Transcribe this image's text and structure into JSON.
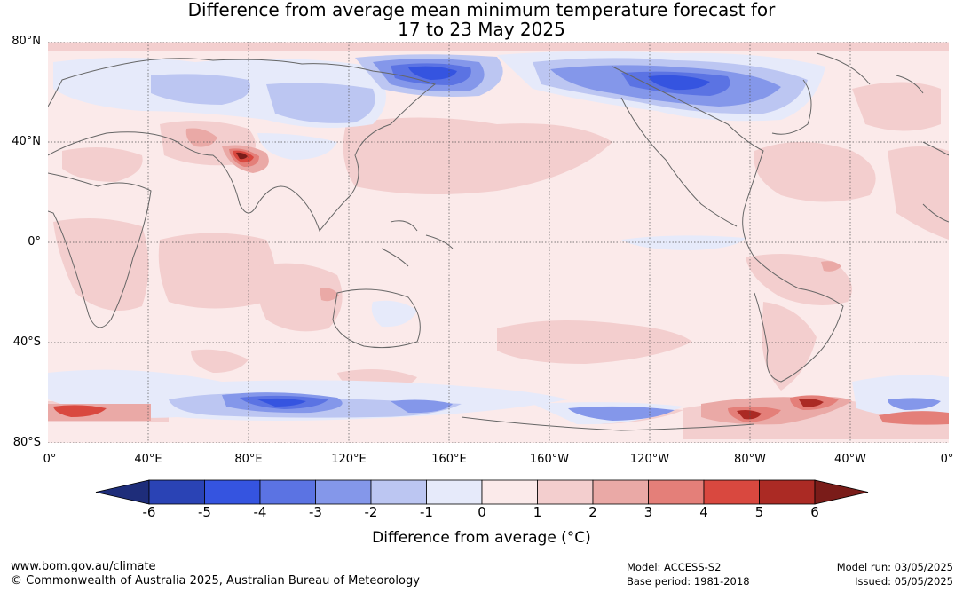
{
  "title": {
    "line1": "Difference from average mean minimum temperature forecast for",
    "line2": "17 to 23 May 2025"
  },
  "map": {
    "lat_labels": [
      "80°N",
      "40°N",
      "0°",
      "40°S",
      "80°S"
    ],
    "lon_labels": [
      "0°",
      "40°E",
      "80°E",
      "120°E",
      "160°E",
      "160°W",
      "120°W",
      "80°W",
      "40°W",
      "0°"
    ],
    "ocean_color": "#fbeaea",
    "land_outline_color": "#666666"
  },
  "colorbar": {
    "label": "Difference from average (°C)",
    "ticks": [
      "-6",
      "-5",
      "-4",
      "-3",
      "-2",
      "-1",
      "0",
      "1",
      "2",
      "3",
      "4",
      "5",
      "6"
    ],
    "colors": [
      "#1e2d7a",
      "#2a43b5",
      "#3554e0",
      "#5b73e3",
      "#8497ea",
      "#bcc6f2",
      "#e6eafa",
      "#fbeaea",
      "#f3cece",
      "#eaa9a6",
      "#e47f79",
      "#d9483f",
      "#ab2a24",
      "#7a1c19"
    ]
  },
  "footer": {
    "url": "www.bom.gov.au/climate",
    "copyright": "© Commonwealth of Australia 2025, Australian Bureau of Meteorology",
    "model": "Model: ACCESS-S2",
    "base_period": "Base period: 1981-2018",
    "model_run": "Model run: 03/05/2025",
    "issued": "Issued: 05/05/2025"
  }
}
